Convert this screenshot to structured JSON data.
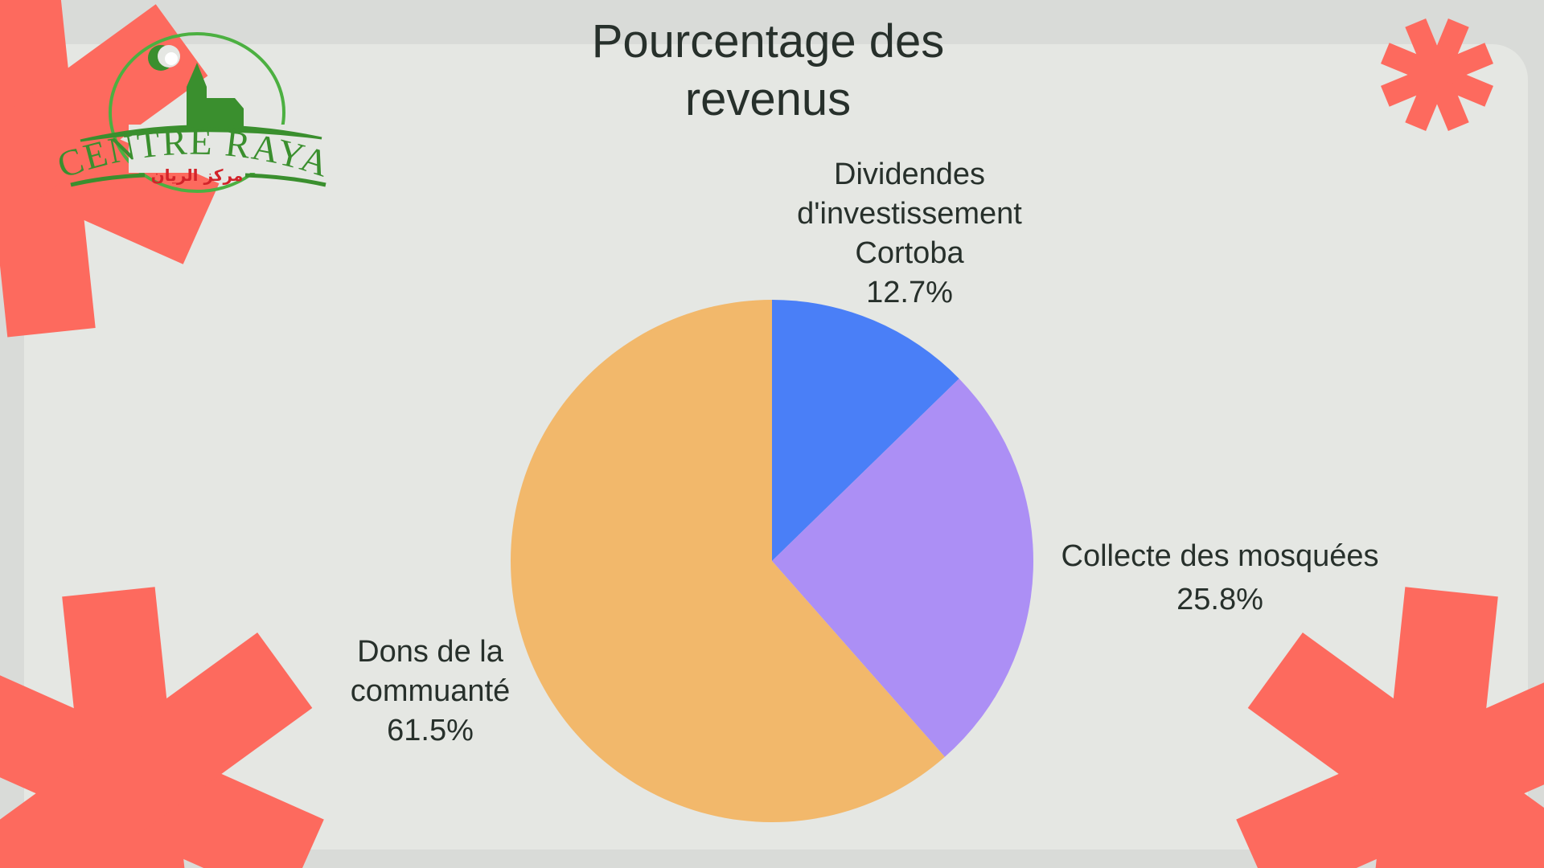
{
  "logo": {
    "text": "CENTRE RAYAN",
    "arabic": "مركز الريان"
  },
  "chart_data": {
    "type": "pie",
    "title": "Pourcentage des revenus",
    "title_lines": [
      "Pourcentage des",
      "revenus"
    ],
    "start": "top",
    "direction": "clockwise",
    "slices": [
      {
        "label_lines": [
          "Dividendes",
          "d'investissement",
          "Cortoba"
        ],
        "label": "Dividendes d'investissement Cortoba",
        "value": 12.7,
        "value_label": "12.7%",
        "color": "#4a7ff7"
      },
      {
        "label_lines": [
          "Collecte des mosquées"
        ],
        "label": "Collecte des mosquées",
        "value": 25.8,
        "value_label": "25.8%",
        "color": "#ac8ff5"
      },
      {
        "label_lines": [
          "Dons de la",
          "commuanté"
        ],
        "label": "Dons de la commuanté",
        "value": 61.5,
        "value_label": "61.5%",
        "color": "#f2b86b"
      }
    ]
  },
  "colors": {
    "accent": "#fd6a5e",
    "panel": "#e5e7e3",
    "background": "#d9dbd8",
    "logo_green": "#3a8f2e",
    "logo_red": "#d2232a"
  }
}
